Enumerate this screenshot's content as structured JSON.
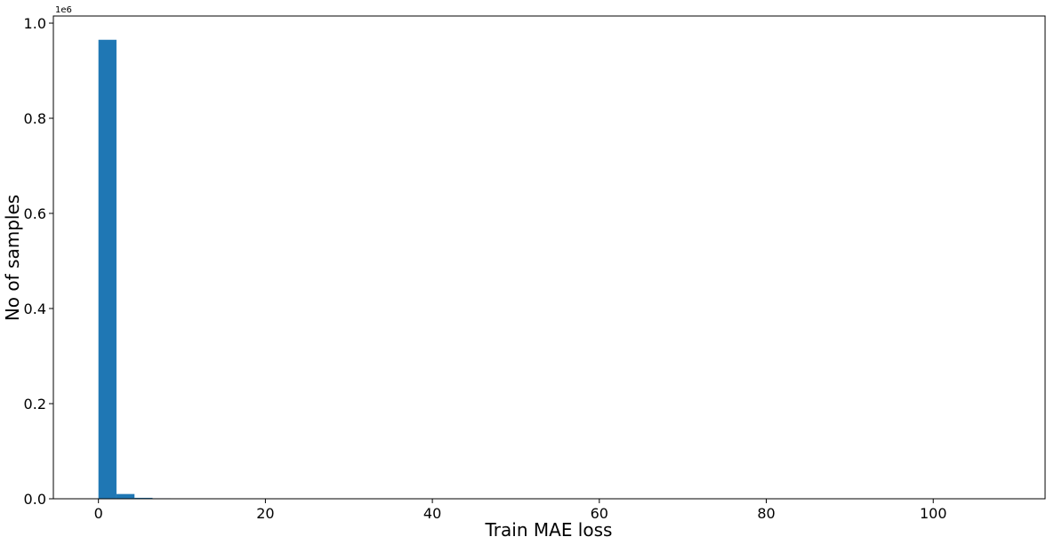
{
  "chart_data": {
    "type": "bar",
    "subtype": "histogram",
    "title": "",
    "xlabel": "Train MAE loss",
    "ylabel": "No of samples",
    "y_offset_label": "1e6",
    "xlim": [
      -5.4,
      113.4
    ],
    "ylim": [
      0,
      1.015
    ],
    "x_ticks": [
      0,
      20,
      40,
      60,
      80,
      100
    ],
    "x_tick_labels": [
      "0",
      "20",
      "40",
      "60",
      "80",
      "100"
    ],
    "y_ticks": [
      0.0,
      0.2,
      0.4,
      0.6,
      0.8,
      1.0
    ],
    "y_tick_labels": [
      "0.0",
      "0.2",
      "0.4",
      "0.6",
      "0.8",
      "1.0"
    ],
    "bar_color": "#1f77b4",
    "grid": false,
    "legend": "none",
    "bins": [
      {
        "x0": 0.0,
        "x1": 2.16,
        "value": 0.965
      },
      {
        "x0": 2.16,
        "x1": 4.32,
        "value": 0.01
      },
      {
        "x0": 4.32,
        "x1": 6.48,
        "value": 0.002
      },
      {
        "x0": 6.48,
        "x1": 8.64,
        "value": 0.001
      }
    ]
  }
}
